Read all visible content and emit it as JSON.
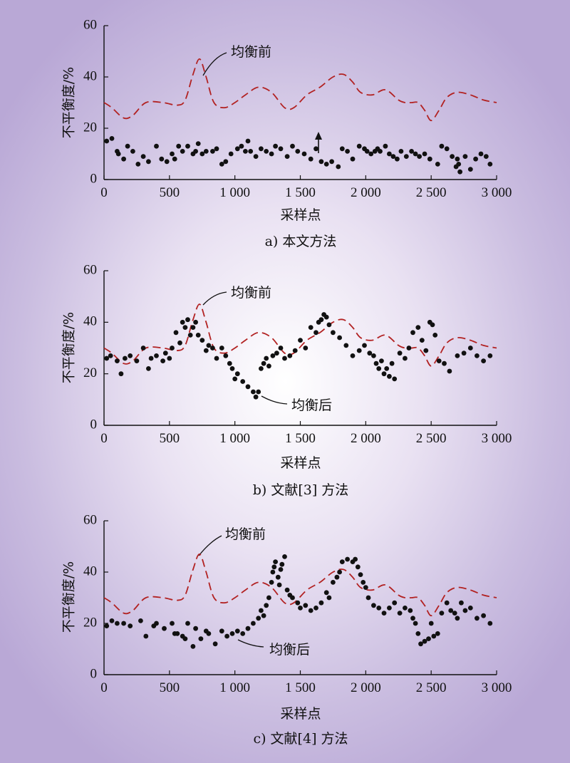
{
  "chart_data": [
    {
      "type": "line",
      "caption": "a) 本文方法",
      "xlabel": "采样点",
      "ylabel": "不平衡度/%",
      "xlim": [
        0,
        3000
      ],
      "ylim": [
        0,
        60
      ],
      "x_ticks": [
        "0",
        "500",
        "1 000",
        "1 500",
        "2 000",
        "2 500",
        "3 000"
      ],
      "y_ticks": [
        "0",
        "20",
        "40",
        "60"
      ],
      "annotations": [
        "均衡前"
      ],
      "series": [
        {
          "style": "dashed",
          "color": "#b22222",
          "x": [
            0,
            60,
            150,
            220,
            320,
            450,
            560,
            620,
            680,
            730,
            780,
            840,
            920,
            1000,
            1080,
            1180,
            1280,
            1380,
            1450,
            1550,
            1650,
            1750,
            1830,
            1900,
            1960,
            2050,
            2150,
            2250,
            2300,
            2350,
            2400,
            2450,
            2500,
            2560,
            2620,
            2700,
            2800,
            2900,
            3000
          ],
          "y": [
            30,
            28,
            24,
            25,
            30,
            30,
            29,
            31,
            41,
            47,
            40,
            30,
            28,
            30,
            33,
            36,
            34,
            28,
            28,
            33,
            36,
            40,
            41,
            38,
            34,
            33,
            35,
            31,
            30,
            30,
            30,
            27,
            23,
            27,
            32,
            34,
            33,
            31,
            30
          ]
        },
        {
          "style": "markers",
          "color": "#111",
          "x": [
            20,
            60,
            100,
            110,
            150,
            180,
            220,
            260,
            300,
            340,
            400,
            440,
            480,
            520,
            540,
            570,
            600,
            640,
            680,
            700,
            720,
            750,
            780,
            830,
            860,
            900,
            930,
            970,
            1020,
            1050,
            1080,
            1100,
            1120,
            1160,
            1200,
            1240,
            1280,
            1310,
            1350,
            1400,
            1440,
            1480,
            1530,
            1580,
            1620,
            1660,
            1700,
            1740,
            1790,
            1820,
            1860,
            1900,
            1950,
            1990,
            2010,
            2040,
            2070,
            2090,
            2110,
            2150,
            2180,
            2210,
            2240,
            2270,
            2310,
            2350,
            2380,
            2410,
            2450,
            2490,
            2550,
            2580,
            2620,
            2660,
            2690,
            2700,
            2710,
            2720,
            2760,
            2800,
            2840,
            2880,
            2920,
            2950
          ],
          "y": [
            15,
            16,
            11,
            10,
            8,
            13,
            11,
            6,
            9,
            7,
            13,
            8,
            7,
            10,
            8,
            13,
            11,
            13,
            10,
            11,
            14,
            10,
            11,
            11,
            12,
            6,
            7,
            10,
            12,
            13,
            11,
            15,
            11,
            9,
            12,
            11,
            10,
            13,
            12,
            9,
            13,
            11,
            10,
            8,
            12,
            7,
            6,
            7,
            5,
            12,
            11,
            8,
            13,
            12,
            11,
            10,
            11,
            12,
            11,
            13,
            10,
            9,
            8,
            11,
            9,
            11,
            10,
            9,
            10,
            8,
            6,
            13,
            12,
            9,
            5,
            8,
            6,
            3,
            9,
            4,
            8,
            10,
            9,
            6
          ]
        }
      ]
    },
    {
      "type": "line",
      "caption": "b) 文献[3] 方法",
      "xlabel": "采样点",
      "ylabel": "不平衡度/%",
      "xlim": [
        0,
        3000
      ],
      "ylim": [
        0,
        60
      ],
      "x_ticks": [
        "0",
        "500",
        "1 000",
        "1 500",
        "2 000",
        "2 500",
        "3 000"
      ],
      "y_ticks": [
        "0",
        "20",
        "40",
        "60"
      ],
      "annotations": [
        "均衡前",
        "均衡后"
      ],
      "series": [
        {
          "style": "dashed",
          "color": "#b22222",
          "x": [
            0,
            60,
            150,
            220,
            320,
            450,
            560,
            620,
            680,
            730,
            780,
            840,
            920,
            1000,
            1080,
            1180,
            1280,
            1380,
            1450,
            1550,
            1650,
            1750,
            1830,
            1900,
            1960,
            2050,
            2150,
            2250,
            2300,
            2350,
            2400,
            2450,
            2500,
            2560,
            2620,
            2700,
            2800,
            2900,
            3000
          ],
          "y": [
            30,
            28,
            24,
            25,
            30,
            30,
            29,
            31,
            41,
            47,
            40,
            30,
            28,
            30,
            33,
            36,
            34,
            28,
            28,
            33,
            36,
            40,
            41,
            38,
            34,
            33,
            35,
            31,
            30,
            30,
            30,
            27,
            23,
            27,
            32,
            34,
            33,
            31,
            30
          ]
        },
        {
          "style": "markers",
          "color": "#111",
          "x": [
            20,
            50,
            100,
            130,
            160,
            200,
            250,
            300,
            340,
            360,
            400,
            450,
            470,
            500,
            520,
            550,
            580,
            600,
            620,
            640,
            660,
            680,
            700,
            720,
            750,
            780,
            800,
            830,
            860,
            900,
            930,
            960,
            980,
            1000,
            1020,
            1060,
            1100,
            1140,
            1160,
            1180,
            1200,
            1220,
            1240,
            1260,
            1290,
            1320,
            1350,
            1380,
            1420,
            1460,
            1500,
            1540,
            1580,
            1620,
            1640,
            1660,
            1680,
            1700,
            1720,
            1750,
            1800,
            1850,
            1900,
            1950,
            1990,
            2030,
            2060,
            2080,
            2100,
            2120,
            2140,
            2160,
            2180,
            2200,
            2220,
            2260,
            2300,
            2330,
            2360,
            2400,
            2430,
            2460,
            2490,
            2510,
            2530,
            2560,
            2600,
            2640,
            2700,
            2750,
            2800,
            2850,
            2900,
            2950
          ],
          "y": [
            26,
            27,
            25,
            20,
            26,
            27,
            25,
            30,
            22,
            26,
            27,
            25,
            28,
            26,
            30,
            36,
            32,
            40,
            38,
            41,
            35,
            38,
            40,
            35,
            33,
            29,
            31,
            30,
            26,
            30,
            27,
            24,
            22,
            18,
            20,
            17,
            15,
            13,
            11,
            13,
            22,
            24,
            26,
            23,
            27,
            28,
            30,
            26,
            27,
            29,
            33,
            30,
            38,
            36,
            40,
            41,
            43,
            42,
            39,
            36,
            34,
            31,
            27,
            29,
            31,
            28,
            27,
            24,
            22,
            25,
            20,
            22,
            19,
            24,
            18,
            28,
            26,
            30,
            36,
            38,
            33,
            29,
            40,
            39,
            35,
            25,
            24,
            21,
            27,
            28,
            30,
            27,
            25,
            27
          ]
        }
      ]
    },
    {
      "type": "line",
      "caption": "c) 文献[4] 方法",
      "xlabel": "采样点",
      "ylabel": "不平衡度/%",
      "xlim": [
        0,
        3000
      ],
      "ylim": [
        0,
        60
      ],
      "x_ticks": [
        "0",
        "500",
        "1 000",
        "1 500",
        "2 000",
        "2 500",
        "3 000"
      ],
      "y_ticks": [
        "0",
        "20",
        "40",
        "60"
      ],
      "annotations": [
        "均衡前",
        "均衡后"
      ],
      "series": [
        {
          "style": "dashed",
          "color": "#b22222",
          "x": [
            0,
            60,
            150,
            220,
            320,
            450,
            560,
            620,
            680,
            730,
            780,
            840,
            920,
            1000,
            1080,
            1180,
            1280,
            1380,
            1450,
            1550,
            1650,
            1750,
            1830,
            1900,
            1960,
            2050,
            2150,
            2250,
            2300,
            2350,
            2400,
            2450,
            2500,
            2560,
            2620,
            2700,
            2800,
            2900,
            3000
          ],
          "y": [
            30,
            28,
            24,
            25,
            30,
            30,
            29,
            31,
            41,
            47,
            40,
            30,
            28,
            30,
            33,
            36,
            34,
            28,
            28,
            33,
            36,
            40,
            41,
            38,
            34,
            33,
            35,
            31,
            30,
            30,
            30,
            27,
            23,
            27,
            32,
            34,
            33,
            31,
            30
          ]
        },
        {
          "style": "markers",
          "color": "#111",
          "x": [
            20,
            60,
            100,
            150,
            200,
            280,
            320,
            380,
            400,
            460,
            520,
            540,
            560,
            600,
            620,
            640,
            680,
            700,
            740,
            780,
            800,
            850,
            900,
            940,
            980,
            1020,
            1060,
            1100,
            1140,
            1180,
            1200,
            1220,
            1240,
            1260,
            1280,
            1290,
            1300,
            1310,
            1330,
            1340,
            1350,
            1360,
            1380,
            1400,
            1420,
            1440,
            1480,
            1500,
            1540,
            1580,
            1620,
            1660,
            1700,
            1720,
            1750,
            1780,
            1800,
            1820,
            1860,
            1900,
            1920,
            1940,
            1960,
            1980,
            2000,
            2020,
            2060,
            2100,
            2140,
            2180,
            2220,
            2260,
            2300,
            2340,
            2360,
            2380,
            2400,
            2420,
            2450,
            2480,
            2500,
            2520,
            2550,
            2580,
            2620,
            2650,
            2680,
            2700,
            2730,
            2760,
            2800,
            2850,
            2900,
            2950
          ],
          "y": [
            19,
            21,
            20,
            20,
            19,
            21,
            15,
            19,
            20,
            18,
            20,
            16,
            16,
            15,
            14,
            20,
            11,
            18,
            14,
            17,
            16,
            12,
            17,
            15,
            16,
            17,
            16,
            18,
            20,
            22,
            25,
            23,
            27,
            30,
            36,
            40,
            42,
            44,
            38,
            35,
            41,
            43,
            46,
            33,
            31,
            30,
            28,
            26,
            27,
            25,
            26,
            28,
            32,
            30,
            36,
            38,
            40,
            44,
            45,
            44,
            45,
            42,
            39,
            36,
            34,
            30,
            27,
            26,
            24,
            26,
            28,
            24,
            26,
            25,
            22,
            20,
            16,
            12,
            13,
            14,
            20,
            15,
            16,
            24,
            28,
            25,
            24,
            22,
            28,
            25,
            26,
            22,
            23,
            20
          ]
        }
      ]
    }
  ]
}
